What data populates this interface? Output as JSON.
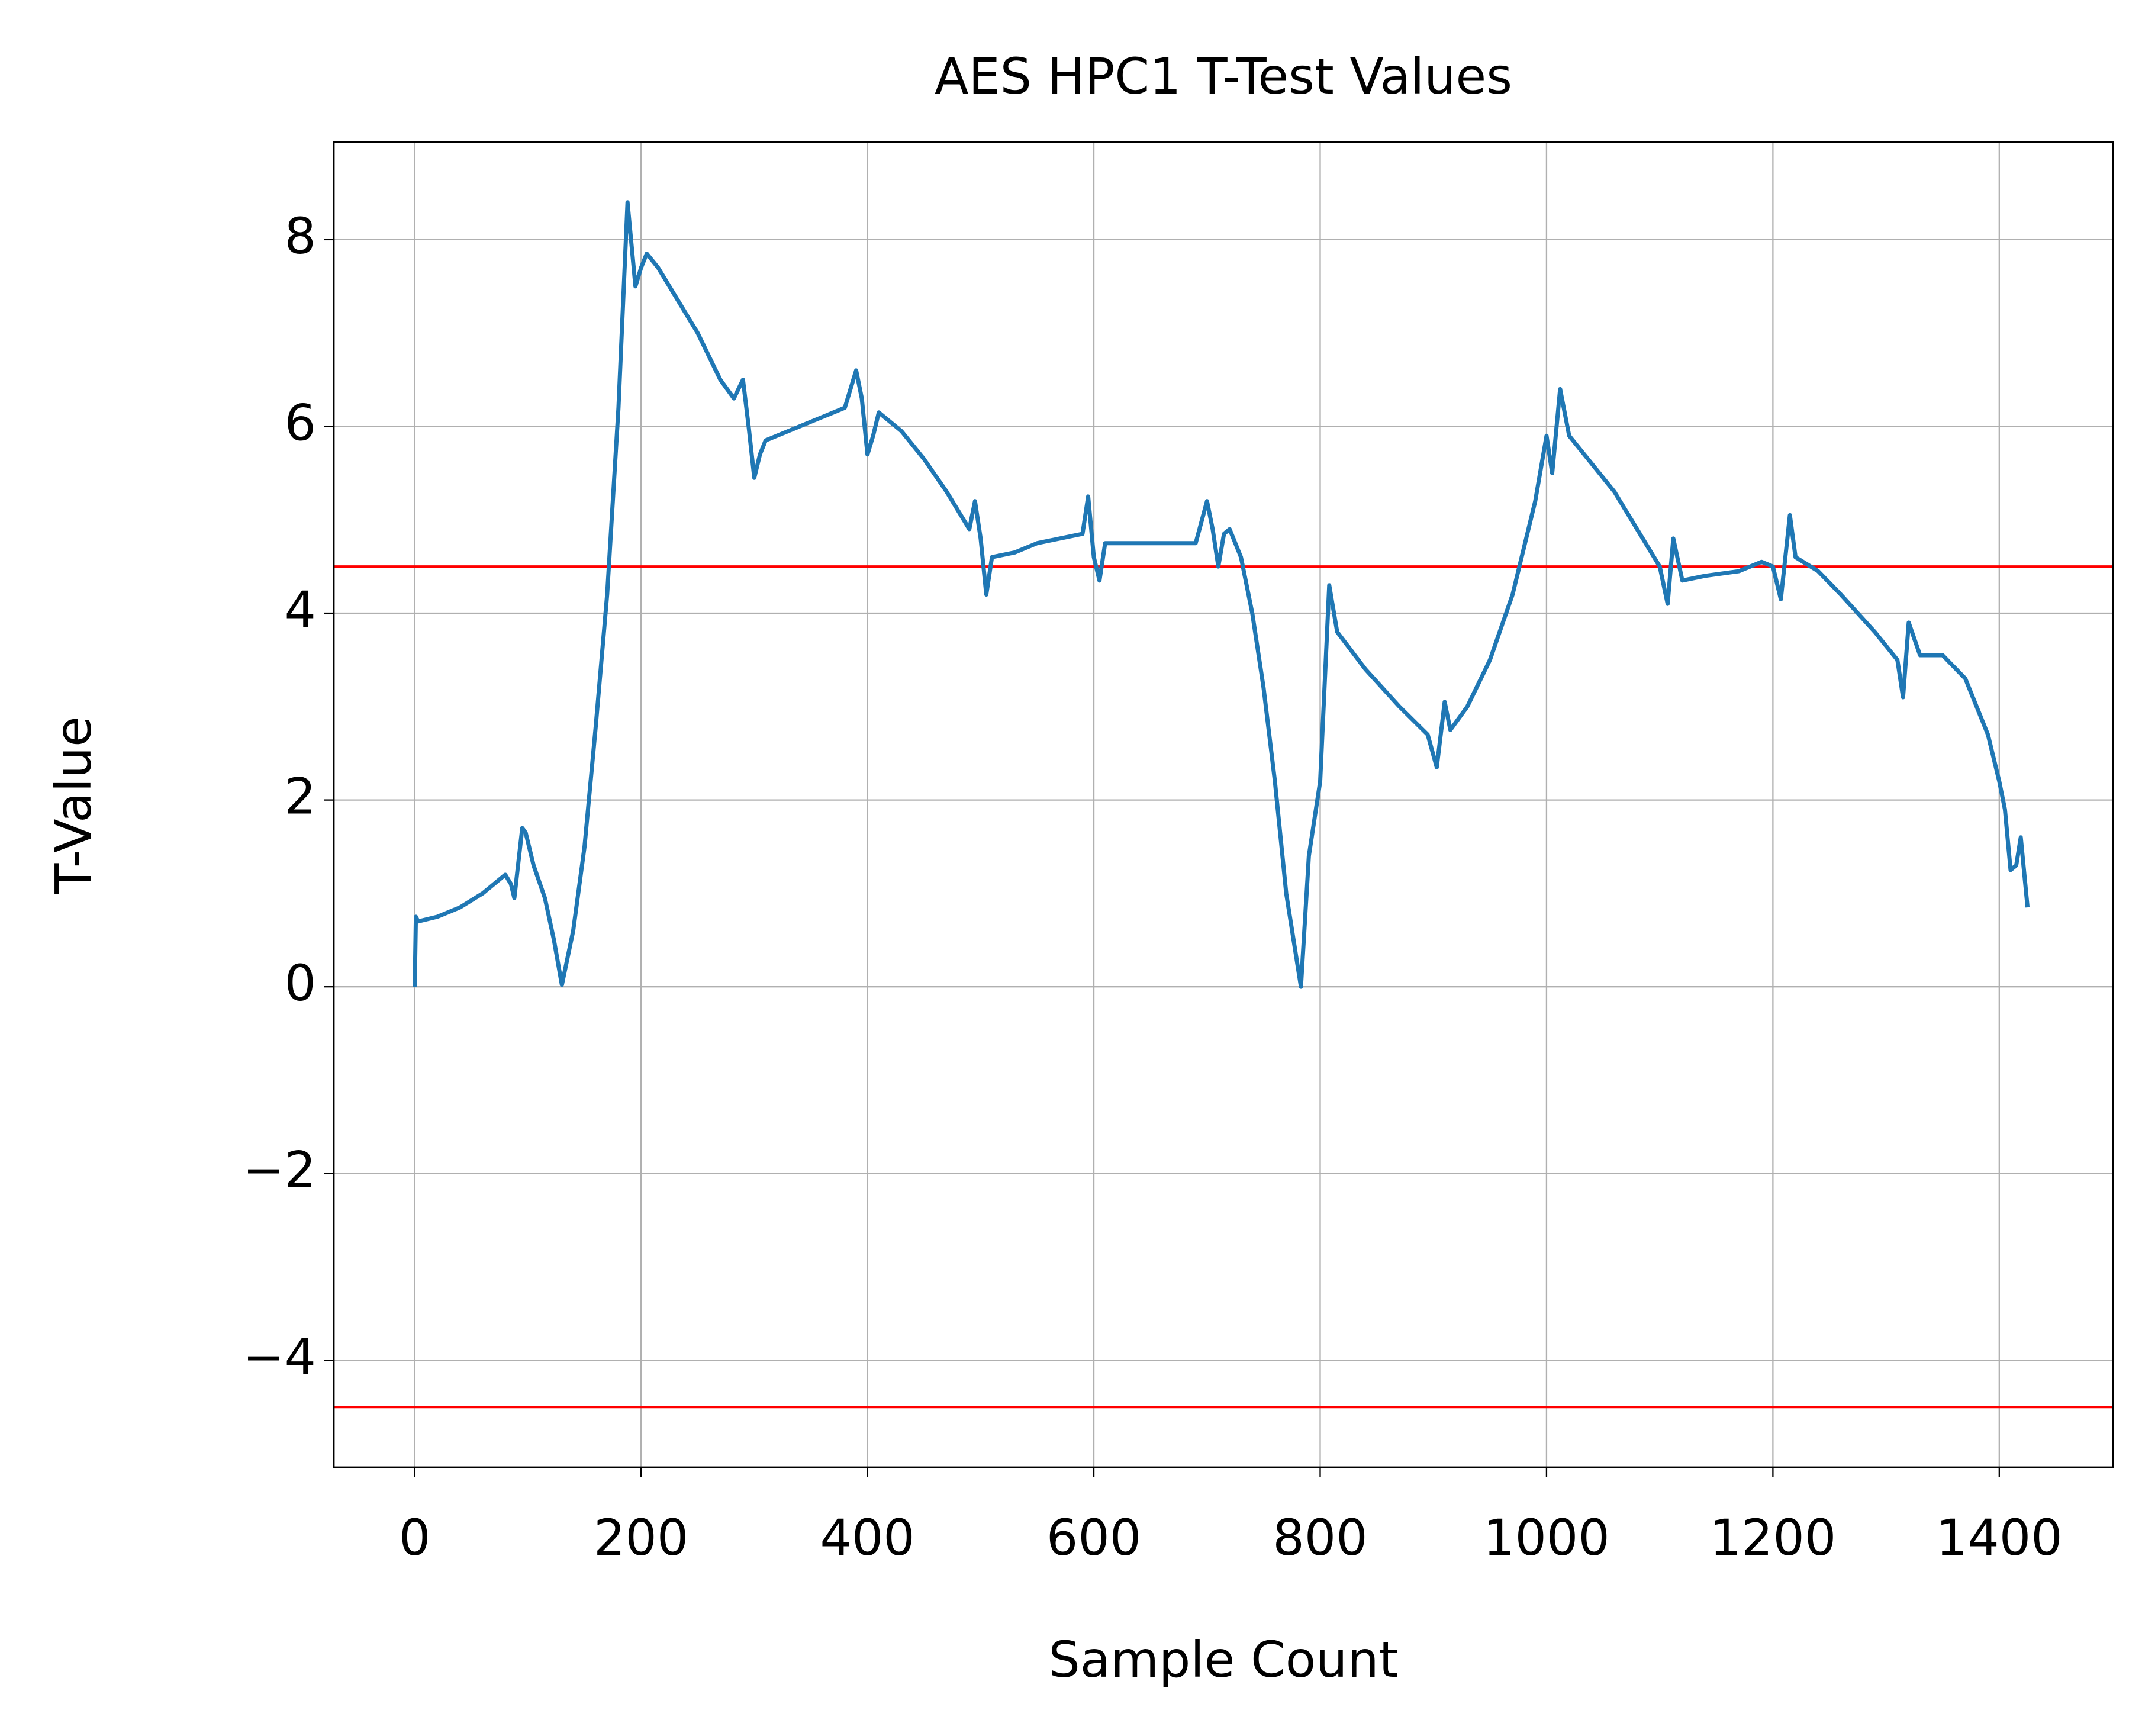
{
  "chart_data": {
    "type": "line",
    "title": "AES HPC1 T-Test Values",
    "x_label": "Sample Count",
    "y_label": "T-Value",
    "x": [
      0,
      1,
      3,
      20,
      40,
      60,
      75,
      80,
      85,
      88,
      95,
      98,
      105,
      115,
      123,
      130,
      140,
      150,
      160,
      170,
      180,
      188,
      195,
      200,
      205,
      215,
      230,
      250,
      270,
      282,
      290,
      295,
      300,
      305,
      310,
      330,
      350,
      380,
      390,
      395,
      400,
      405,
      410,
      430,
      450,
      470,
      490,
      495,
      500,
      505,
      510,
      530,
      550,
      570,
      590,
      595,
      600,
      605,
      610,
      650,
      690,
      700,
      705,
      710,
      715,
      720,
      730,
      740,
      750,
      760,
      770,
      783,
      790,
      800,
      808,
      815,
      840,
      870,
      895,
      903,
      910,
      915,
      930,
      950,
      970,
      990,
      1000,
      1005,
      1012,
      1020,
      1040,
      1060,
      1080,
      1100,
      1107,
      1112,
      1120,
      1140,
      1170,
      1190,
      1200,
      1207,
      1215,
      1220,
      1240,
      1260,
      1290,
      1310,
      1315,
      1320,
      1330,
      1350,
      1370,
      1390,
      1400,
      1405,
      1410,
      1415,
      1419,
      1425
    ],
    "series": [
      {
        "color": "#1f77b4",
        "values": [
          0,
          0.75,
          0.7,
          0.75,
          0.85,
          1.0,
          1.15,
          1.2,
          1.1,
          0.95,
          1.7,
          1.65,
          1.3,
          0.95,
          0.5,
          0.02,
          0.6,
          1.5,
          2.8,
          4.2,
          6.2,
          8.4,
          7.5,
          7.7,
          7.85,
          7.7,
          7.4,
          7.0,
          6.5,
          6.3,
          6.5,
          6.0,
          5.45,
          5.7,
          5.85,
          5.95,
          6.05,
          6.2,
          6.6,
          6.3,
          5.7,
          5.9,
          6.15,
          5.95,
          5.65,
          5.3,
          4.9,
          5.2,
          4.8,
          4.2,
          4.6,
          4.65,
          4.75,
          4.8,
          4.85,
          5.25,
          4.6,
          4.35,
          4.75,
          4.75,
          4.75,
          5.2,
          4.9,
          4.5,
          4.85,
          4.9,
          4.6,
          4.0,
          3.2,
          2.2,
          1.0,
          0.0,
          1.4,
          2.2,
          4.3,
          3.8,
          3.4,
          3.0,
          2.7,
          2.35,
          3.05,
          2.75,
          3.0,
          3.5,
          4.2,
          5.2,
          5.9,
          5.5,
          6.4,
          5.9,
          5.6,
          5.3,
          4.9,
          4.5,
          4.1,
          4.8,
          4.35,
          4.4,
          4.45,
          4.55,
          4.5,
          4.15,
          5.05,
          4.6,
          4.45,
          4.2,
          3.8,
          3.5,
          3.1,
          3.9,
          3.55,
          3.55,
          3.3,
          2.7,
          2.2,
          1.9,
          1.25,
          1.3,
          1.6,
          0.85
        ]
      }
    ],
    "hlines": [
      {
        "value": 4.5,
        "color": "#ff0000"
      },
      {
        "value": -4.5,
        "color": "#ff0000"
      }
    ],
    "xlim": [
      -71.5,
      1500.5
    ],
    "ylim": [
      -5.145,
      9.045
    ],
    "xticks": [
      0,
      200,
      400,
      600,
      800,
      1000,
      1200,
      1400
    ],
    "yticks": [
      {
        "value": -4,
        "label": "−4"
      },
      {
        "value": -2,
        "label": "−2"
      },
      0,
      2,
      4,
      6,
      8
    ],
    "grid": true
  }
}
